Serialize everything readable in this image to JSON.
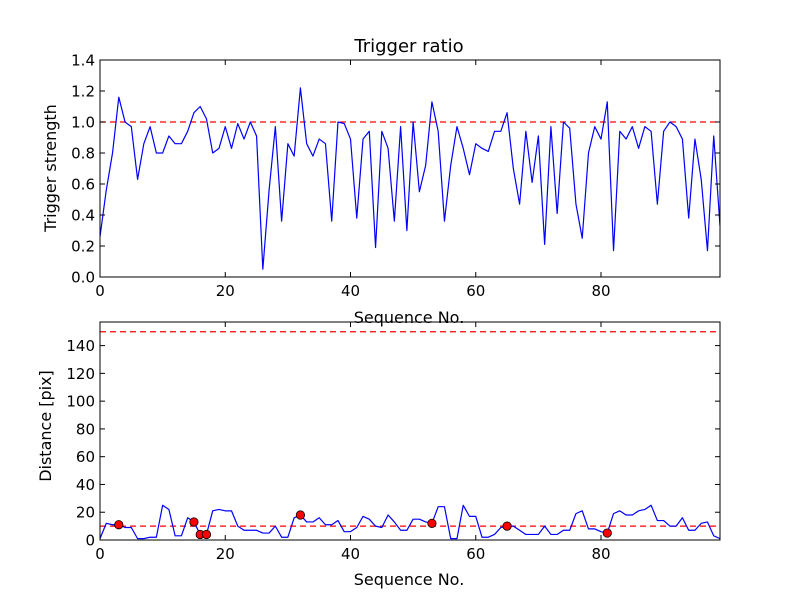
{
  "chart_data": [
    {
      "type": "line",
      "title": "Trigger ratio",
      "xlabel": "Sequence No.",
      "ylabel": "Trigger strength",
      "xlim": [
        0,
        99
      ],
      "ylim": [
        0.0,
        1.4
      ],
      "xticks": [
        0,
        20,
        40,
        60,
        80
      ],
      "xtick_labels": [
        "0",
        "20",
        "40",
        "60",
        "80"
      ],
      "yticks": [
        0.0,
        0.2,
        0.4,
        0.6,
        0.8,
        1.0,
        1.2,
        1.4
      ],
      "ytick_labels": [
        "0.0",
        "0.2",
        "0.4",
        "0.6",
        "0.8",
        "1.0",
        "1.2",
        "1.4"
      ],
      "threshold": 1.0,
      "threshold_color": "#ff0000",
      "line_color": "#0000ff",
      "series": [
        {
          "name": "Trigger strength",
          "values": [
            0.26,
            0.56,
            0.8,
            1.16,
            1.0,
            0.97,
            0.63,
            0.86,
            0.97,
            0.8,
            0.8,
            0.91,
            0.86,
            0.86,
            0.94,
            1.06,
            1.1,
            1.02,
            0.8,
            0.83,
            0.97,
            0.83,
            0.99,
            0.89,
            1.0,
            0.91,
            0.05,
            0.56,
            0.97,
            0.36,
            0.86,
            0.78,
            1.22,
            0.86,
            0.78,
            0.89,
            0.86,
            0.36,
            1.0,
            0.99,
            0.89,
            0.38,
            0.89,
            0.94,
            0.19,
            0.94,
            0.83,
            0.36,
            0.97,
            0.3,
            1.0,
            0.55,
            0.72,
            1.13,
            0.94,
            0.36,
            0.72,
            0.97,
            0.83,
            0.66,
            0.86,
            0.83,
            0.81,
            0.94,
            0.94,
            1.06,
            0.7,
            0.47,
            0.94,
            0.61,
            0.91,
            0.21,
            0.97,
            0.41,
            1.0,
            0.96,
            0.47,
            0.25,
            0.8,
            0.97,
            0.89,
            1.13,
            0.17,
            0.94,
            0.89,
            0.97,
            0.83,
            0.97,
            0.94,
            0.47,
            0.94,
            1.0,
            0.97,
            0.89,
            0.38,
            0.89,
            0.63,
            0.17,
            0.91,
            0.33
          ]
        }
      ]
    },
    {
      "type": "line",
      "title": "",
      "xlabel": "Sequence No.",
      "ylabel": "Distance [pix]",
      "xlim": [
        0,
        99
      ],
      "ylim": [
        0,
        157
      ],
      "xticks": [
        0,
        20,
        40,
        60,
        80
      ],
      "xtick_labels": [
        "0",
        "20",
        "40",
        "60",
        "80"
      ],
      "yticks": [
        0,
        20,
        40,
        60,
        80,
        100,
        120,
        140
      ],
      "ytick_labels": [
        "0",
        "20",
        "40",
        "60",
        "80",
        "100",
        "120",
        "140"
      ],
      "thresholds": [
        10,
        150
      ],
      "threshold_color": "#ff0000",
      "line_color": "#0000ff",
      "marker_color": "#ff0000",
      "series": [
        {
          "name": "Distance",
          "values": [
            1,
            12,
            11,
            11,
            9,
            9,
            1,
            1,
            2,
            2,
            25,
            22,
            3,
            3,
            16,
            13,
            4,
            4,
            21,
            22,
            21,
            21,
            10,
            7,
            7,
            7,
            5,
            5,
            10,
            2,
            2,
            16,
            18,
            13,
            13,
            16,
            11,
            11,
            14,
            6,
            6,
            9,
            17,
            15,
            10,
            9,
            18,
            13,
            7,
            7,
            15,
            15,
            13,
            12,
            24,
            24,
            1,
            1,
            25,
            17,
            17,
            2,
            2,
            4,
            9,
            10,
            10,
            7,
            4,
            4,
            4,
            10,
            4,
            4,
            7,
            7,
            19,
            21,
            8,
            8,
            6,
            5,
            19,
            21,
            18,
            18,
            21,
            22,
            25,
            14,
            14,
            10,
            10,
            16,
            7,
            7,
            12,
            13,
            3,
            1
          ]
        }
      ],
      "markers": [
        {
          "x": 3,
          "y": 11
        },
        {
          "x": 15,
          "y": 13
        },
        {
          "x": 16,
          "y": 4
        },
        {
          "x": 17,
          "y": 4
        },
        {
          "x": 32,
          "y": 18
        },
        {
          "x": 53,
          "y": 12
        },
        {
          "x": 65,
          "y": 10
        },
        {
          "x": 81,
          "y": 5
        }
      ]
    }
  ]
}
